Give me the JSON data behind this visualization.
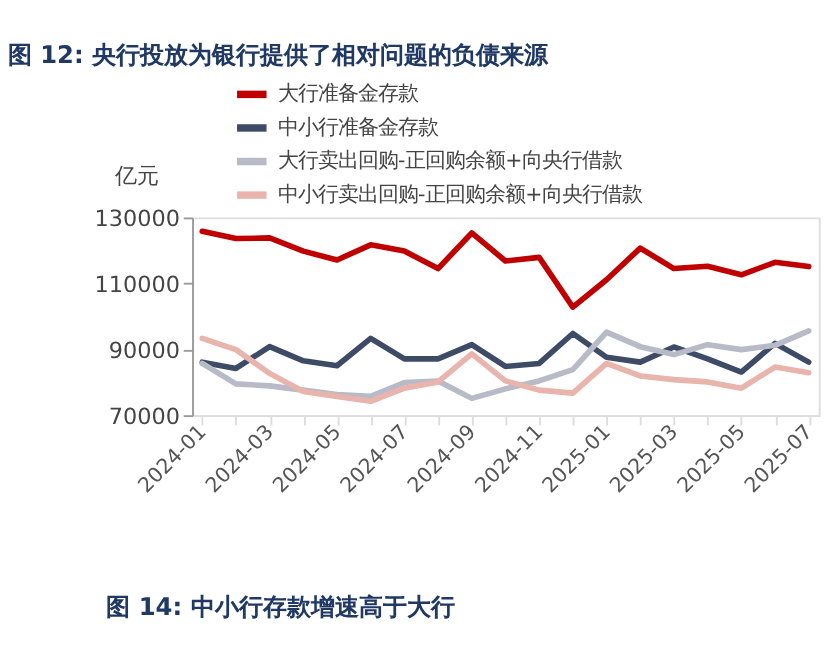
{
  "chart_data": {
    "type": "line",
    "title": "图 12: 央行投放为银行提供了相对问题的负债来源",
    "ylabel": "亿元",
    "categories": [
      "2024-01",
      null,
      "2024-03",
      null,
      "2024-05",
      null,
      "2024-07",
      null,
      "2024-09",
      null,
      "2024-11",
      null,
      "2025-01",
      null,
      "2025-03",
      null,
      "2025-05",
      null,
      "2025-07"
    ],
    "series": [
      {
        "name": "大行准备金存款",
        "color": "#c00000",
        "values": [
          125800,
          123600,
          123800,
          119800,
          117100,
          121700,
          119800,
          114500,
          125300,
          116800,
          117900,
          102800,
          111100,
          120700,
          114500,
          115200,
          112600,
          116400,
          115100
        ]
      },
      {
        "name": "中小行准备金存款",
        "color": "#3d4b66",
        "values": [
          86100,
          84200,
          90800,
          86500,
          85000,
          93300,
          87100,
          87100,
          91400,
          84800,
          85700,
          94800,
          87600,
          86100,
          90700,
          87100,
          83100,
          91800,
          86100
        ]
      },
      {
        "name": "大行卖出回购-正回购余额+向央行借款",
        "color": "#b8bac8",
        "values": [
          85700,
          79500,
          78900,
          77600,
          76300,
          75700,
          79900,
          80400,
          75100,
          78000,
          80400,
          83800,
          95200,
          90800,
          88400,
          91400,
          89900,
          91200,
          95600
        ]
      },
      {
        "name": "中小行卖出回购-正回购余额+向央行借款",
        "color": "#e8b4ac",
        "values": [
          93300,
          89900,
          82700,
          77200,
          75700,
          74200,
          78200,
          80100,
          88600,
          80400,
          77600,
          76700,
          85700,
          81900,
          80800,
          80100,
          78200,
          84600,
          82900
        ]
      }
    ],
    "ylim": [
      70000,
      130000
    ],
    "yticks": [
      70000,
      90000,
      110000,
      130000
    ],
    "grid": false,
    "legend": "top left",
    "line_style": "solid",
    "marker": "none",
    "annotations": [
      "图 14: 中小行存款增速高于大行"
    ]
  }
}
